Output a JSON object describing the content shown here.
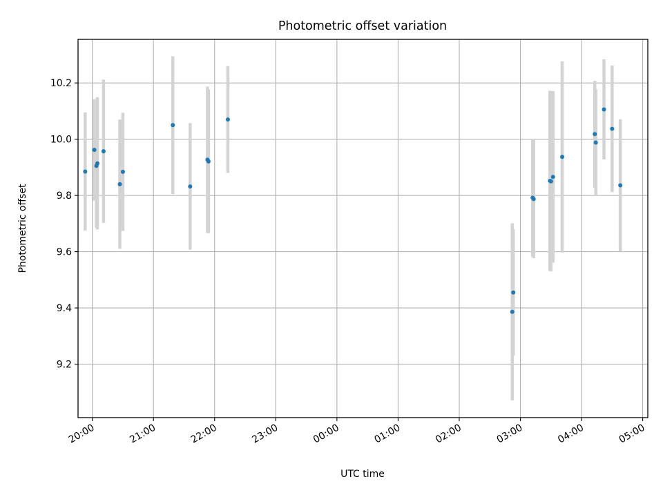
{
  "chart_data": {
    "type": "scatter",
    "title": "Photometric offset variation",
    "xlabel": "UTC time",
    "ylabel": "Photometric offset",
    "grid": true,
    "x_ticks": [
      "20:00",
      "21:00",
      "22:00",
      "23:00",
      "00:00",
      "01:00",
      "02:00",
      "03:00",
      "04:00",
      "05:00"
    ],
    "y_ticks": [
      "9.2",
      "9.4",
      "9.6",
      "9.8",
      "10.0",
      "10.2"
    ],
    "xlim": [
      "19:46",
      "05:05"
    ],
    "ylim": [
      9.01,
      10.355
    ],
    "colors": {
      "point": "#1f77b4",
      "errorbar": "#d3d3d3",
      "grid": "#b0b0b0"
    },
    "series": [
      {
        "points": [
          {
            "x": "19:53",
            "y": 9.885,
            "err": 0.21
          },
          {
            "x": "20:02",
            "y": 9.962,
            "err": 0.18
          },
          {
            "x": "20:04",
            "y": 9.905,
            "err": 0.22
          },
          {
            "x": "20:05",
            "y": 9.914,
            "err": 0.235
          },
          {
            "x": "20:11",
            "y": 9.957,
            "err": 0.255
          },
          {
            "x": "20:27",
            "y": 9.84,
            "err": 0.23
          },
          {
            "x": "20:30",
            "y": 9.884,
            "err": 0.21
          },
          {
            "x": "21:19",
            "y": 10.05,
            "err": 0.245
          },
          {
            "x": "21:36",
            "y": 9.832,
            "err": 0.225
          },
          {
            "x": "21:53",
            "y": 9.927,
            "err": 0.26
          },
          {
            "x": "21:54",
            "y": 9.921,
            "err": 0.255
          },
          {
            "x": "22:13",
            "y": 10.07,
            "err": 0.19
          },
          {
            "x": "02:52",
            "y": 9.386,
            "err": 0.315
          },
          {
            "x": "02:53",
            "y": 9.455,
            "err": 0.225
          },
          {
            "x": "03:12",
            "y": 9.792,
            "err": 0.21
          },
          {
            "x": "03:13",
            "y": 9.787,
            "err": 0.21
          },
          {
            "x": "03:29",
            "y": 9.852,
            "err": 0.32
          },
          {
            "x": "03:30",
            "y": 9.85,
            "err": 0.32
          },
          {
            "x": "03:32",
            "y": 9.866,
            "err": 0.305
          },
          {
            "x": "03:41",
            "y": 9.937,
            "err": 0.34
          },
          {
            "x": "04:13",
            "y": 10.018,
            "err": 0.19
          },
          {
            "x": "04:14",
            "y": 9.988,
            "err": 0.19
          },
          {
            "x": "04:22",
            "y": 10.106,
            "err": 0.178
          },
          {
            "x": "04:30",
            "y": 10.037,
            "err": 0.225
          },
          {
            "x": "04:38",
            "y": 9.836,
            "err": 0.235
          }
        ]
      }
    ]
  }
}
